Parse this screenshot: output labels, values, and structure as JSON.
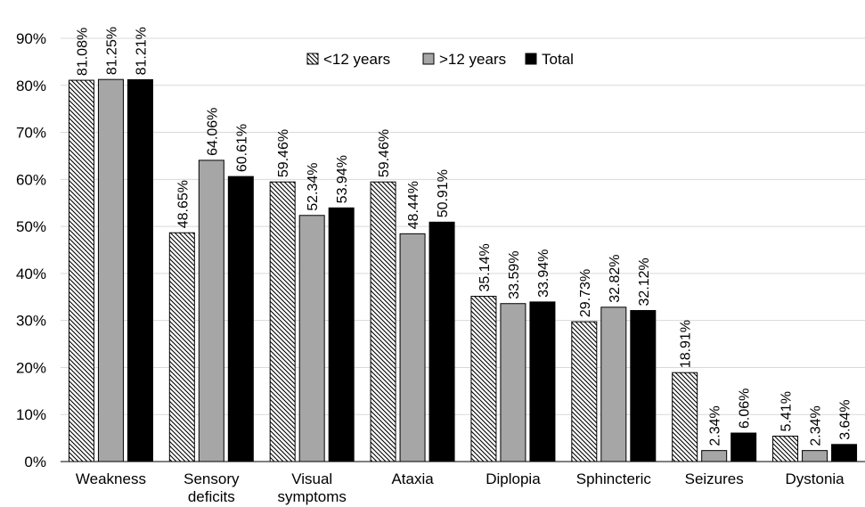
{
  "chart_data": {
    "type": "bar",
    "categories": [
      [
        "Weakness"
      ],
      [
        "Sensory",
        "deficits"
      ],
      [
        "Visual",
        "symptoms"
      ],
      [
        "Ataxia"
      ],
      [
        "Diplopia"
      ],
      [
        "Sphincteric"
      ],
      [
        "Seizures"
      ],
      [
        "Dystonia"
      ]
    ],
    "series": [
      {
        "name": "<12 years",
        "pattern": "hatch",
        "values": [
          81.08,
          48.65,
          59.46,
          59.46,
          35.14,
          29.73,
          18.91,
          5.41
        ],
        "labels": [
          "81.08%",
          "48.65%",
          "59.46%",
          "59.46%",
          "35.14%",
          "29.73%",
          "18.91%",
          "5.41%"
        ]
      },
      {
        "name": ">12 years",
        "color": "#a6a6a6",
        "values": [
          81.25,
          64.06,
          52.34,
          48.44,
          33.59,
          32.82,
          2.34,
          2.34
        ],
        "labels": [
          "81.25%",
          "64.06%",
          "52.34%",
          "48.44%",
          "33.59%",
          "32.82%",
          "2.34%",
          "2.34%"
        ]
      },
      {
        "name": "Total",
        "color": "#000000",
        "values": [
          81.21,
          60.61,
          53.94,
          50.91,
          33.94,
          32.12,
          6.06,
          3.64
        ],
        "labels": [
          "81.21%",
          "60.61%",
          "53.94%",
          "50.91%",
          "33.94%",
          "32.12%",
          "6.06%",
          "3.64%"
        ]
      }
    ],
    "yticks": [
      "0%",
      "10%",
      "20%",
      "30%",
      "40%",
      "50%",
      "60%",
      "70%",
      "80%",
      "90%"
    ],
    "ylim": [
      0,
      90
    ],
    "grid": true,
    "legend_position": "top-center"
  }
}
